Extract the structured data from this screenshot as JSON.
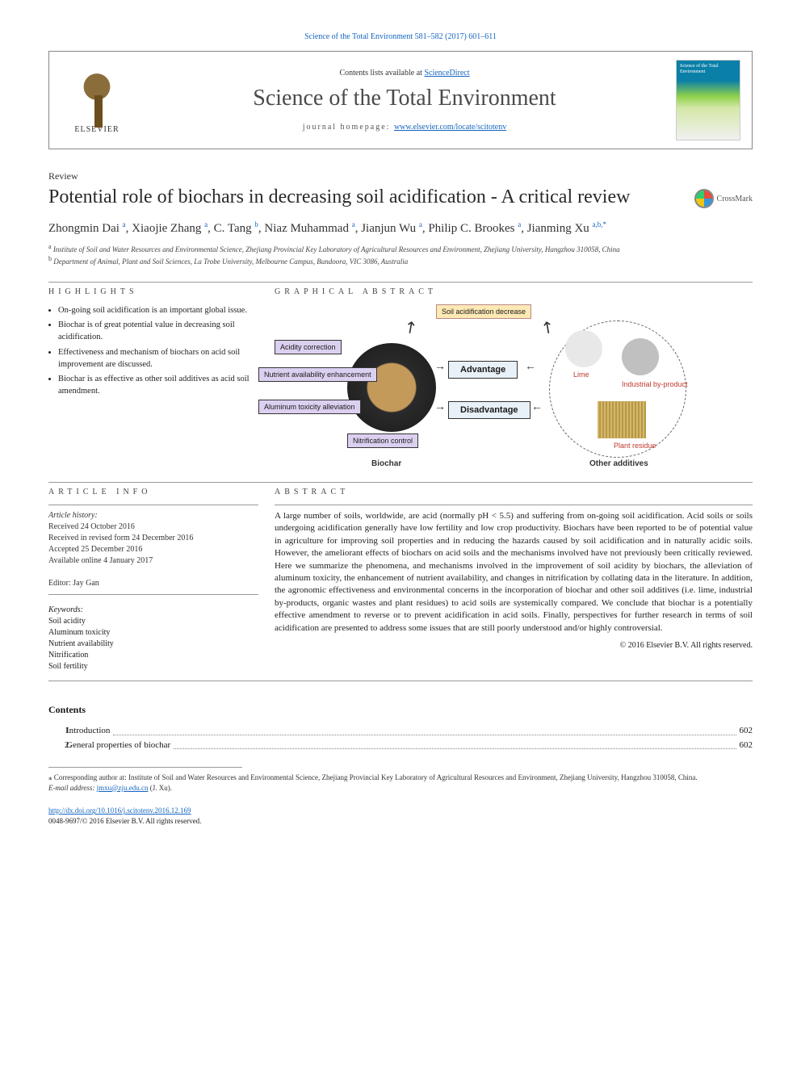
{
  "top_link": "Science of the Total Environment 581–582 (2017) 601–611",
  "header": {
    "contents_prefix": "Contents lists available at ",
    "contents_link": "ScienceDirect",
    "journal": "Science of the Total Environment",
    "homepage_prefix": "journal homepage: ",
    "homepage_link": "www.elsevier.com/locate/scitotenv",
    "elsevier": "ELSEVIER",
    "cover_label": "Science of the Total Environment"
  },
  "article_type": "Review",
  "title": "Potential role of biochars in decreasing soil acidification - A critical review",
  "crossmark": "CrossMark",
  "authors_html": "Zhongmin Dai <sup>a</sup>, Xiaojie Zhang <sup>a</sup>, C. Tang <sup>b</sup>, Niaz Muhammad <sup>a</sup>, Jianjun Wu <sup>a</sup>, Philip C. Brookes <sup>a</sup>, Jianming Xu <sup>a,b,*</sup>",
  "affiliations": {
    "a": "Institute of Soil and Water Resources and Environmental Science, Zhejiang Provincial Key Laboratory of Agricultural Resources and Environment, Zhejiang University, Hangzhou 310058, China",
    "b": "Department of Animal, Plant and Soil Sciences, La Trobe University, Melbourne Campus, Bundoora, VIC 3086, Australia"
  },
  "labels": {
    "highlights": "HIGHLIGHTS",
    "graphical": "GRAPHICAL ABSTRACT",
    "article_info": "ARTICLE INFO",
    "abstract": "ABSTRACT"
  },
  "highlights": [
    "On-going soil acidification is an important global issue.",
    "Biochar is of great potential value in decreasing soil acidification.",
    "Effectiveness and mechanism of biochars on acid soil improvement are discussed.",
    "Biochar is as effective as other soil additives as acid soil amendment."
  ],
  "ga": {
    "top_box": "Soil acidification decrease",
    "left_boxes": [
      "Acidity correction",
      "Nutrient availability enhancement",
      "Aluminum toxicity alleviation",
      "Nitrification control"
    ],
    "mid_boxes": [
      "Advantage",
      "Disadvantage"
    ],
    "biochar_label": "Biochar",
    "other_label": "Other additives",
    "right_labels": [
      "Lime",
      "Industrial by-product",
      "Plant residue"
    ]
  },
  "article_info": {
    "history_head": "Article history:",
    "received": "Received 24 October 2016",
    "revised": "Received in revised form 24 December 2016",
    "accepted": "Accepted 25 December 2016",
    "online": "Available online 4 January 2017",
    "editor_label": "Editor: ",
    "editor": "Jay Gan",
    "keywords_head": "Keywords:",
    "keywords": [
      "Soil acidity",
      "Aluminum toxicity",
      "Nutrient availability",
      "Nitrification",
      "Soil fertility"
    ]
  },
  "abstract": "A large number of soils, worldwide, are acid (normally pH < 5.5) and suffering from on-going soil acidification. Acid soils or soils undergoing acidification generally have low fertility and low crop productivity. Biochars have been reported to be of potential value in agriculture for improving soil properties and in reducing the hazards caused by soil acidification and in naturally acidic soils. However, the ameliorant effects of biochars on acid soils and the mechanisms involved have not previously been critically reviewed. Here we summarize the phenomena, and mechanisms involved in the improvement of soil acidity by biochars, the alleviation of aluminum toxicity, the enhancement of nutrient availability, and changes in nitrification by collating data in the literature. In addition, the agronomic effectiveness and environmental concerns in the incorporation of biochar and other soil additives (i.e. lime, industrial by-products, organic wastes and plant residues) to acid soils are systemically compared. We conclude that biochar is a potentially effective amendment to reverse or to prevent acidification in acid soils. Finally, perspectives for further research in terms of soil acidification are presented to address some issues that are still poorly understood and/or highly controversial.",
  "copyright": "© 2016 Elsevier B.V. All rights reserved.",
  "contents_head": "Contents",
  "toc": [
    {
      "num": "1.",
      "title": "Introduction",
      "page": "602"
    },
    {
      "num": "2.",
      "title": "General properties of biochar",
      "page": "602"
    }
  ],
  "footnote": {
    "corr": "⁎ Corresponding author at: Institute of Soil and Water Resources and Environmental Science, Zhejiang Provincial Key Laboratory of Agricultural Resources and Environment, Zhejiang University, Hangzhou 310058, China.",
    "email_label": "E-mail address: ",
    "email": "jmxu@zju.edu.cn",
    "email_suffix": " (J. Xu)."
  },
  "bottom": {
    "doi": "http://dx.doi.org/10.1016/j.scitotenv.2016.12.169",
    "issn": "0048-9697/© 2016 Elsevier B.V. All rights reserved."
  },
  "colors": {
    "link": "#1565c0",
    "text": "#1a1a1a",
    "rule": "#999999"
  }
}
